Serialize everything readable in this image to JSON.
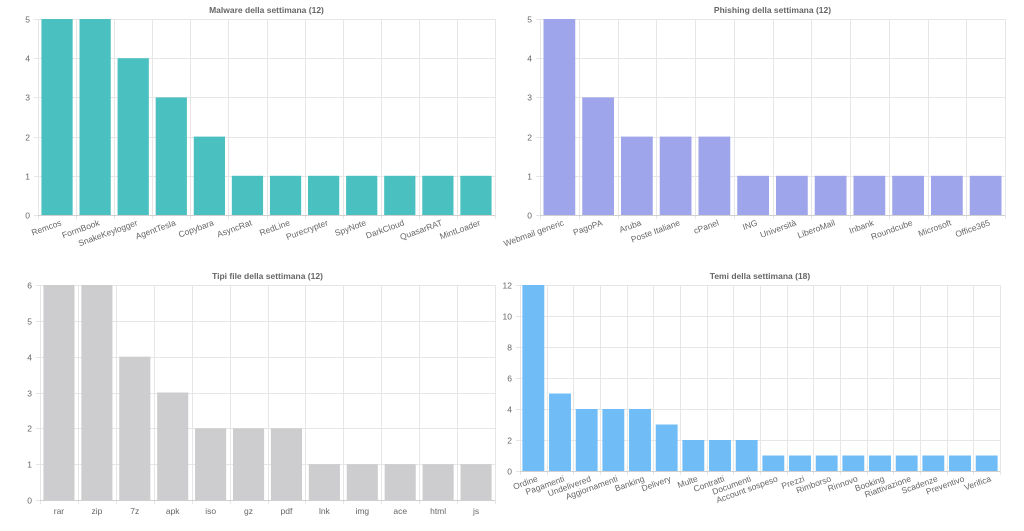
{
  "chart_data": [
    {
      "type": "bar",
      "title": "Malware della settimana (12)",
      "categories": [
        "Remcos",
        "FormBook",
        "SnakeKeylogger",
        "AgentTesla",
        "Copybara",
        "AsyncRat",
        "RedLine",
        "Purecrypter",
        "SpyNote",
        "DarkCloud",
        "QuasarRAT",
        "MintLoader"
      ],
      "values": [
        5,
        5,
        4,
        3,
        2,
        1,
        1,
        1,
        1,
        1,
        1,
        1
      ],
      "yticks": [
        "0",
        "1",
        "2",
        "3",
        "4",
        "5"
      ],
      "ylim": [
        0,
        5
      ],
      "color": "#4bc0c0",
      "rotate_labels": true,
      "grid": true
    },
    {
      "type": "bar",
      "title": "Phishing della settimana (12)",
      "categories": [
        "Webmail generic",
        "PagoPA",
        "Aruba",
        "Poste Italiane",
        "cPanel",
        "ING",
        "Università",
        "LiberoMail",
        "Inbank",
        "Roundcube",
        "Microsoft",
        "Office365"
      ],
      "values": [
        5,
        3,
        2,
        2,
        2,
        1,
        1,
        1,
        1,
        1,
        1,
        1
      ],
      "yticks": [
        "0",
        "1",
        "2",
        "3",
        "4",
        "5"
      ],
      "ylim": [
        0,
        5
      ],
      "color": "#9fa5ea",
      "rotate_labels": true,
      "grid": true
    },
    {
      "type": "bar",
      "title": "Tipi file della settimana (12)",
      "categories": [
        "rar",
        "zip",
        "7z",
        "apk",
        "iso",
        "gz",
        "pdf",
        "lnk",
        "img",
        "ace",
        "html",
        "js"
      ],
      "values": [
        6,
        6,
        4,
        3,
        2,
        2,
        2,
        1,
        1,
        1,
        1,
        1
      ],
      "yticks": [
        "0",
        "1",
        "2",
        "3",
        "4",
        "5",
        "6"
      ],
      "ylim": [
        0,
        6
      ],
      "color": "#cdcdcf",
      "rotate_labels": false,
      "grid": true
    },
    {
      "type": "bar",
      "title": "Temi della settimana (18)",
      "categories": [
        "Ordine",
        "Pagamenti",
        "Undelivered",
        "Aggiornamenti",
        "Banking",
        "Delivery",
        "Multe",
        "Contratti",
        "Documenti",
        "Account sospeso",
        "Prezzi",
        "Rimborso",
        "Rinnovo",
        "Booking",
        "Riattivazione",
        "Scadenze",
        "Preventivo",
        "Verifica"
      ],
      "values": [
        12,
        5,
        4,
        4,
        4,
        3,
        2,
        2,
        2,
        1,
        1,
        1,
        1,
        1,
        1,
        1,
        1,
        1
      ],
      "yticks": [
        "0",
        "2",
        "4",
        "6",
        "8",
        "10",
        "12"
      ],
      "ylim": [
        0,
        12
      ],
      "color": "#6fbcf6",
      "rotate_labels": true,
      "grid": true
    }
  ]
}
